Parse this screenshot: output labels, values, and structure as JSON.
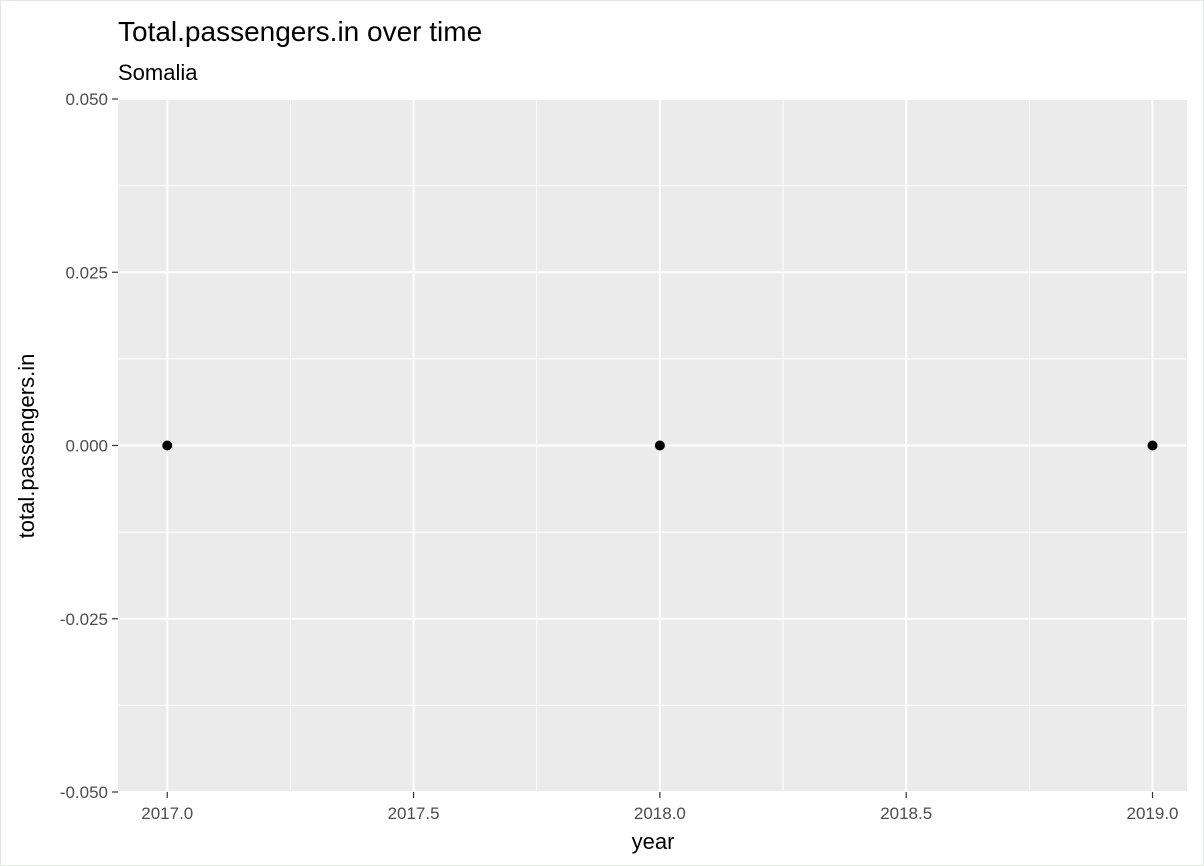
{
  "chart_data": {
    "type": "scatter",
    "title": "Total.passengers.in over time",
    "subtitle": "Somalia",
    "xlabel": "year",
    "ylabel": "total.passengers.in",
    "xlim": [
      2016.9,
      2019.07
    ],
    "ylim": [
      -0.05,
      0.05
    ],
    "x_ticks": [
      2017.0,
      2017.5,
      2018.0,
      2018.5,
      2019.0
    ],
    "x_tick_labels": [
      "2017.0",
      "2017.5",
      "2018.0",
      "2018.5",
      "2019.0"
    ],
    "y_ticks": [
      -0.05,
      -0.025,
      0.0,
      0.025,
      0.05
    ],
    "y_tick_labels": [
      "-0.050",
      "-0.025",
      "0.000",
      "0.025",
      "0.050"
    ],
    "grid": true,
    "panel_color": "#ebebeb",
    "grid_color": "#ffffff",
    "point_color": "#000000",
    "points": [
      {
        "x": 2017,
        "y": 0
      },
      {
        "x": 2018,
        "y": 0
      },
      {
        "x": 2019,
        "y": 0
      }
    ]
  }
}
